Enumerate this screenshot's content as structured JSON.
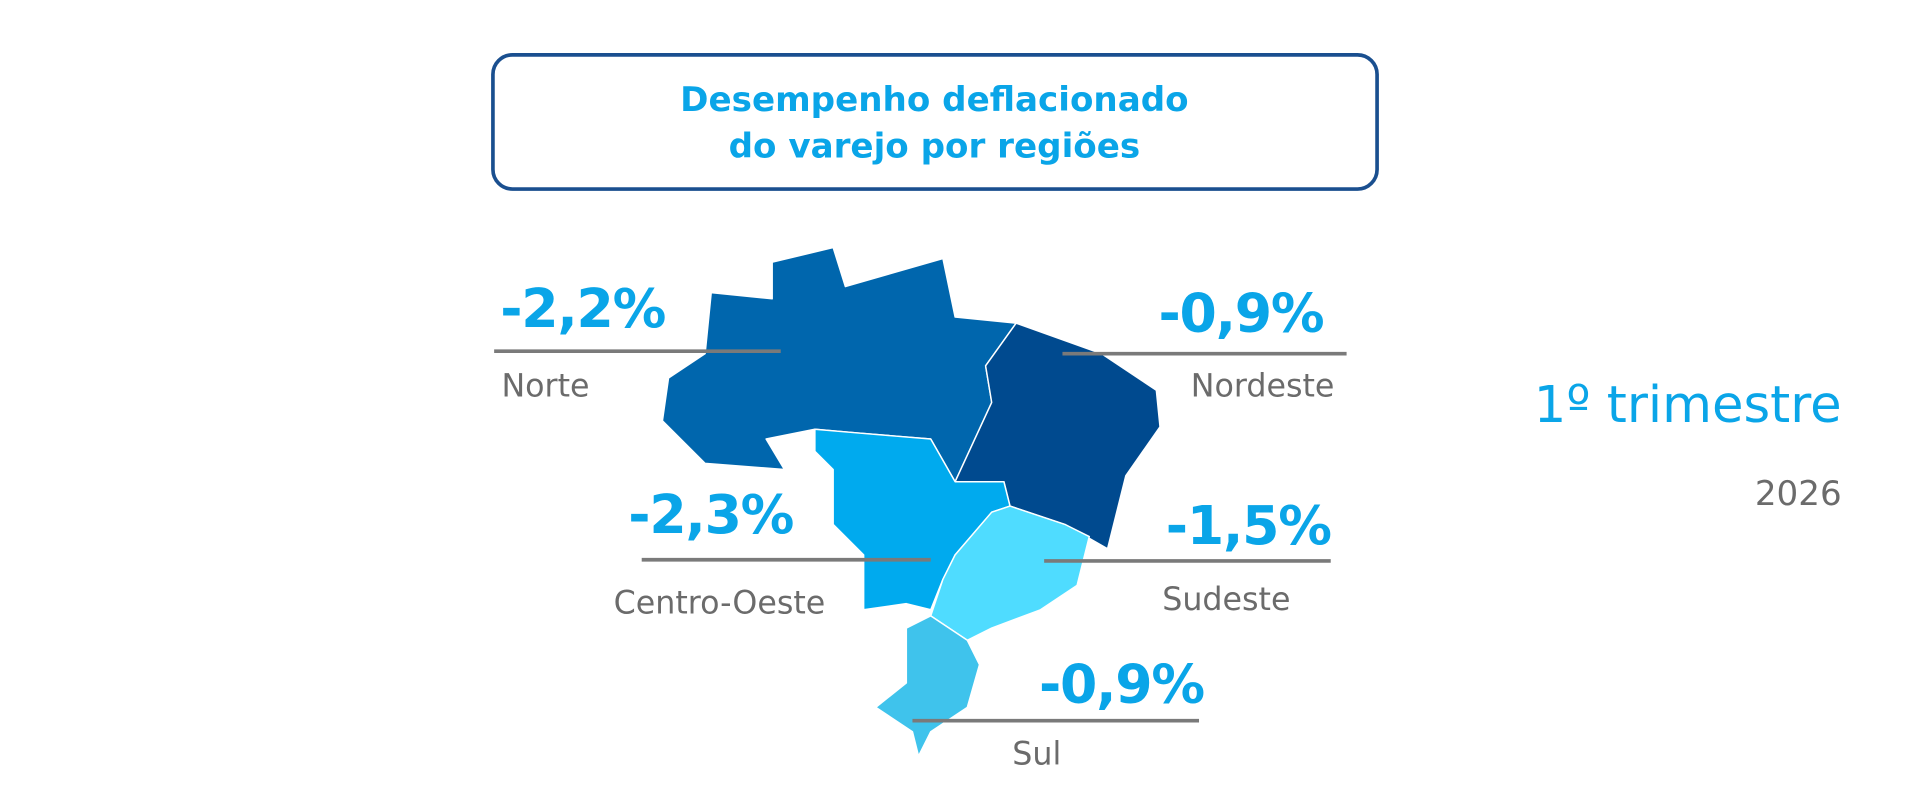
{
  "title": {
    "lines": [
      "Desempenho deflacionado",
      "do varejo por regiões"
    ]
  },
  "regions": [
    {
      "name": "Norte",
      "value": "-2,2%"
    },
    {
      "name": "Nordeste",
      "value": "-0,9%"
    },
    {
      "name": "Centro-Oeste",
      "value": "-2,3%"
    },
    {
      "name": "Sudeste",
      "value": "-1,5%"
    },
    {
      "name": "Sul",
      "value": "-0,9%"
    }
  ],
  "period": "1º trimestre",
  "year": "2026"
}
